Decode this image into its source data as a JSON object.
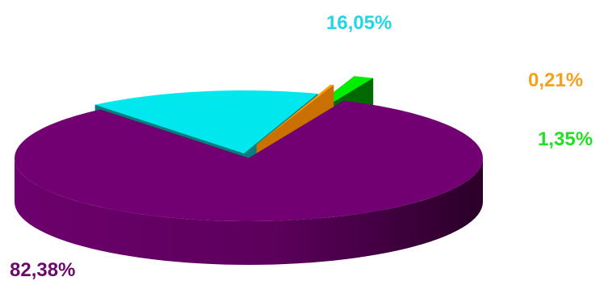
{
  "chart_data": {
    "type": "pie",
    "style": "3d-exploded",
    "legend": "none",
    "slices": [
      {
        "label": "82,38%",
        "value": 82.38,
        "color": "#730073",
        "side_color": "#4a0048",
        "label_color": "#6b0a6b"
      },
      {
        "label": "16,05%",
        "value": 16.05,
        "color": "#00e8ee",
        "side_color": "#0a7d7f",
        "label_color": "#22d6e4"
      },
      {
        "label": "0,21%",
        "value": 0.21,
        "color": "#ffa000",
        "side_color": "#c97000",
        "label_color": "#f5a01a"
      },
      {
        "label": "1,35%",
        "value": 1.35,
        "color": "#00ee00",
        "side_color": "#006a00",
        "label_color": "#22e022"
      }
    ]
  }
}
